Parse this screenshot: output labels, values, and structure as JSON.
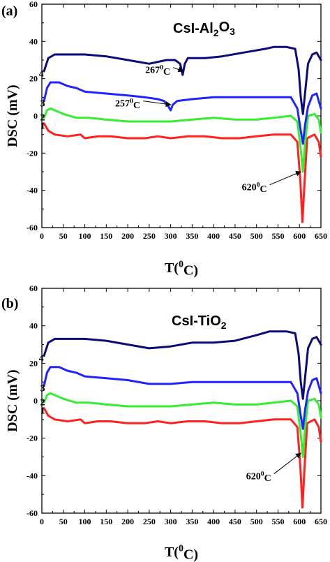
{
  "chart_data": [
    {
      "type": "line",
      "panel_label": "(a)",
      "title_parts": [
        "CsI-Al",
        "2",
        "O",
        "3"
      ],
      "xlabel_parts": [
        "T(",
        "0",
        "C)"
      ],
      "ylabel": "DSC (mV)",
      "xlim": [
        0,
        650
      ],
      "ylim": [
        -60,
        60
      ],
      "xticks": [
        0,
        50,
        100,
        150,
        200,
        250,
        300,
        350,
        400,
        450,
        500,
        550,
        600,
        650
      ],
      "yticks": [
        -60,
        -40,
        -20,
        0,
        20,
        40,
        60
      ],
      "series": [
        {
          "label": "1",
          "color": "#ff2020",
          "points": [
            [
              5,
              -4
            ],
            [
              15,
              -8
            ],
            [
              30,
              -10
            ],
            [
              60,
              -11
            ],
            [
              90,
              -10
            ],
            [
              100,
              -12
            ],
            [
              130,
              -11
            ],
            [
              160,
              -11
            ],
            [
              200,
              -12
            ],
            [
              240,
              -12
            ],
            [
              270,
              -11
            ],
            [
              300,
              -12
            ],
            [
              340,
              -11
            ],
            [
              380,
              -11
            ],
            [
              420,
              -12
            ],
            [
              460,
              -12
            ],
            [
              500,
              -11
            ],
            [
              540,
              -10
            ],
            [
              580,
              -10
            ],
            [
              595,
              -14
            ],
            [
              602,
              -35
            ],
            [
              607,
              -57
            ],
            [
              612,
              -35
            ],
            [
              618,
              -12
            ],
            [
              635,
              -10
            ],
            [
              645,
              -14
            ],
            [
              650,
              -22
            ]
          ]
        },
        {
          "label": "2",
          "color": "#33ee33",
          "points": [
            [
              5,
              -1
            ],
            [
              12,
              3
            ],
            [
              20,
              4
            ],
            [
              30,
              3
            ],
            [
              50,
              1
            ],
            [
              80,
              -1
            ],
            [
              110,
              -1
            ],
            [
              150,
              -2
            ],
            [
              200,
              -3
            ],
            [
              250,
              -3
            ],
            [
              300,
              -3
            ],
            [
              350,
              -2
            ],
            [
              400,
              -1
            ],
            [
              450,
              -2
            ],
            [
              500,
              -2
            ],
            [
              540,
              -1
            ],
            [
              580,
              0
            ],
            [
              595,
              -3
            ],
            [
              603,
              -18
            ],
            [
              608,
              -30
            ],
            [
              613,
              -15
            ],
            [
              620,
              0
            ],
            [
              635,
              1
            ],
            [
              645,
              -2
            ],
            [
              650,
              -9
            ]
          ]
        },
        {
          "label": "3",
          "color": "#2222ff",
          "points": [
            [
              5,
              8
            ],
            [
              12,
              15
            ],
            [
              20,
              18
            ],
            [
              40,
              18
            ],
            [
              60,
              16
            ],
            [
              80,
              15
            ],
            [
              100,
              13
            ],
            [
              150,
              12
            ],
            [
              200,
              11
            ],
            [
              240,
              10
            ],
            [
              270,
              9
            ],
            [
              285,
              8
            ],
            [
              295,
              5
            ],
            [
              300,
              3
            ],
            [
              305,
              6
            ],
            [
              315,
              8
            ],
            [
              350,
              9
            ],
            [
              400,
              10
            ],
            [
              450,
              10
            ],
            [
              500,
              10
            ],
            [
              540,
              10
            ],
            [
              580,
              10
            ],
            [
              595,
              4
            ],
            [
              603,
              -8
            ],
            [
              608,
              -15
            ],
            [
              613,
              -5
            ],
            [
              620,
              5
            ],
            [
              630,
              11
            ],
            [
              640,
              12
            ],
            [
              650,
              4
            ]
          ]
        },
        {
          "label": "4",
          "color": "#0a0a7a",
          "points": [
            [
              5,
              24
            ],
            [
              15,
              31
            ],
            [
              30,
              33
            ],
            [
              60,
              33
            ],
            [
              100,
              33
            ],
            [
              150,
              32
            ],
            [
              200,
              30
            ],
            [
              250,
              28
            ],
            [
              290,
              30
            ],
            [
              310,
              30
            ],
            [
              322,
              28
            ],
            [
              328,
              22
            ],
            [
              333,
              28
            ],
            [
              340,
              31
            ],
            [
              380,
              31
            ],
            [
              420,
              32
            ],
            [
              470,
              34
            ],
            [
              520,
              36
            ],
            [
              540,
              37
            ],
            [
              570,
              37
            ],
            [
              590,
              36
            ],
            [
              598,
              25
            ],
            [
              603,
              10
            ],
            [
              608,
              1
            ],
            [
              613,
              12
            ],
            [
              620,
              28
            ],
            [
              630,
              33
            ],
            [
              640,
              34
            ],
            [
              650,
              30
            ]
          ]
        }
      ],
      "annotations": [
        {
          "text_parts": [
            "267",
            "0",
            "C"
          ],
          "at": [
            270,
            23
          ],
          "target": [
            329,
            24
          ]
        },
        {
          "text_parts": [
            "257",
            "0",
            "C"
          ],
          "at": [
            200,
            5
          ],
          "target": [
            300,
            6
          ]
        },
        {
          "text_parts": [
            "620",
            "0",
            "C"
          ],
          "at": [
            495,
            -40
          ],
          "target": [
            603,
            -30
          ]
        }
      ]
    },
    {
      "type": "line",
      "panel_label": "(b)",
      "title_parts": [
        "CsI-TiO",
        "2"
      ],
      "xlabel_parts": [
        "T(",
        "0",
        "C)"
      ],
      "ylabel": "DSC (mV)",
      "xlim": [
        0,
        650
      ],
      "ylim": [
        -60,
        60
      ],
      "xticks": [
        0,
        50,
        100,
        150,
        200,
        250,
        300,
        350,
        400,
        450,
        500,
        550,
        600,
        650
      ],
      "yticks": [
        -60,
        -40,
        -20,
        0,
        20,
        40,
        60
      ],
      "series": [
        {
          "label": "1",
          "color": "#ff2020",
          "points": [
            [
              5,
              -4
            ],
            [
              15,
              -8
            ],
            [
              30,
              -10
            ],
            [
              60,
              -11
            ],
            [
              90,
              -10
            ],
            [
              100,
              -12
            ],
            [
              130,
              -11
            ],
            [
              160,
              -11
            ],
            [
              200,
              -12
            ],
            [
              240,
              -12
            ],
            [
              270,
              -11
            ],
            [
              300,
              -12
            ],
            [
              340,
              -11
            ],
            [
              380,
              -11
            ],
            [
              420,
              -12
            ],
            [
              460,
              -12
            ],
            [
              500,
              -11
            ],
            [
              540,
              -10
            ],
            [
              580,
              -10
            ],
            [
              595,
              -14
            ],
            [
              602,
              -35
            ],
            [
              607,
              -57
            ],
            [
              612,
              -35
            ],
            [
              618,
              -12
            ],
            [
              635,
              -10
            ],
            [
              645,
              -14
            ],
            [
              650,
              -22
            ]
          ]
        },
        {
          "label": "2",
          "color": "#33ee33",
          "points": [
            [
              5,
              -1
            ],
            [
              12,
              3
            ],
            [
              20,
              4
            ],
            [
              30,
              3
            ],
            [
              50,
              1
            ],
            [
              80,
              -1
            ],
            [
              110,
              -1
            ],
            [
              150,
              -2
            ],
            [
              200,
              -3
            ],
            [
              250,
              -3
            ],
            [
              300,
              -3
            ],
            [
              350,
              -2
            ],
            [
              400,
              -1
            ],
            [
              450,
              -2
            ],
            [
              500,
              -2
            ],
            [
              540,
              -1
            ],
            [
              580,
              0
            ],
            [
              595,
              -3
            ],
            [
              603,
              -18
            ],
            [
              608,
              -30
            ],
            [
              613,
              -15
            ],
            [
              620,
              0
            ],
            [
              635,
              1
            ],
            [
              645,
              -2
            ],
            [
              650,
              -9
            ]
          ]
        },
        {
          "label": "3",
          "color": "#2222ff",
          "points": [
            [
              5,
              8
            ],
            [
              12,
              15
            ],
            [
              20,
              18
            ],
            [
              40,
              18
            ],
            [
              60,
              16
            ],
            [
              80,
              15
            ],
            [
              100,
              13
            ],
            [
              150,
              12
            ],
            [
              200,
              11
            ],
            [
              250,
              9
            ],
            [
              300,
              9
            ],
            [
              350,
              10
            ],
            [
              400,
              10
            ],
            [
              450,
              10
            ],
            [
              500,
              10
            ],
            [
              540,
              10
            ],
            [
              580,
              10
            ],
            [
              595,
              4
            ],
            [
              603,
              -8
            ],
            [
              608,
              -15
            ],
            [
              613,
              -5
            ],
            [
              620,
              5
            ],
            [
              630,
              11
            ],
            [
              640,
              12
            ],
            [
              650,
              4
            ]
          ]
        },
        {
          "label": "4",
          "color": "#0a0a7a",
          "points": [
            [
              5,
              24
            ],
            [
              15,
              31
            ],
            [
              30,
              33
            ],
            [
              60,
              33
            ],
            [
              100,
              33
            ],
            [
              150,
              32
            ],
            [
              200,
              30
            ],
            [
              250,
              28
            ],
            [
              300,
              29
            ],
            [
              350,
              31
            ],
            [
              400,
              31
            ],
            [
              450,
              32
            ],
            [
              500,
              35
            ],
            [
              530,
              37
            ],
            [
              570,
              37
            ],
            [
              590,
              36
            ],
            [
              598,
              25
            ],
            [
              603,
              10
            ],
            [
              608,
              1
            ],
            [
              613,
              12
            ],
            [
              620,
              28
            ],
            [
              630,
              33
            ],
            [
              640,
              34
            ],
            [
              650,
              30
            ]
          ]
        }
      ],
      "annotations": [
        {
          "text_parts": [
            "620",
            "0",
            "C"
          ],
          "at": [
            505,
            -42
          ],
          "target": [
            603,
            -28
          ]
        }
      ]
    }
  ]
}
